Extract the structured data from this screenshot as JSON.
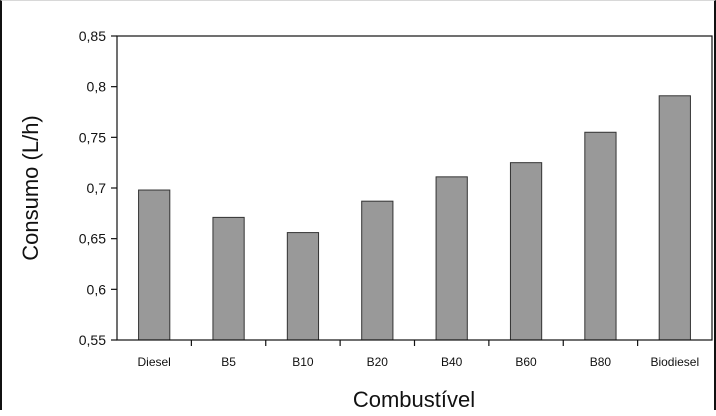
{
  "chart_data": {
    "type": "bar",
    "title": "",
    "xlabel": "Combustível",
    "ylabel": "Consumo (L/h)",
    "categories": [
      "Diesel",
      "B5",
      "B10",
      "B20",
      "B40",
      "B60",
      "B80",
      "Biodiesel"
    ],
    "values": [
      0.698,
      0.671,
      0.656,
      0.687,
      0.711,
      0.725,
      0.755,
      0.791
    ],
    "ylim": [
      0.55,
      0.85
    ],
    "yticks": [
      "0,55",
      "0,6",
      "0,65",
      "0,7",
      "0,75",
      "0,8",
      "0,85"
    ],
    "grid": false,
    "legend": "none",
    "bar_color": "#999999",
    "bar_stroke": "#333333"
  }
}
